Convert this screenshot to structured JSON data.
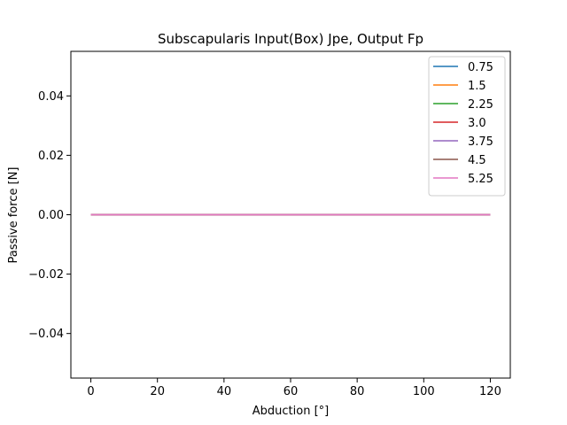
{
  "chart_data": {
    "type": "line",
    "title": "Subscapularis Input(Box) Jpe, Output Fp",
    "xlabel": "Abduction [°]",
    "ylabel": "Passive force [N]",
    "xlim": [
      -6,
      126
    ],
    "ylim": [
      -0.055,
      0.055
    ],
    "x_ticks": [
      0,
      20,
      40,
      60,
      80,
      100,
      120
    ],
    "x_tick_labels": [
      "0",
      "20",
      "40",
      "60",
      "80",
      "100",
      "120"
    ],
    "y_ticks": [
      -0.04,
      -0.02,
      0.0,
      0.02,
      0.04
    ],
    "y_tick_labels": [
      "−0.04",
      "−0.02",
      "0.00",
      "0.02",
      "0.04"
    ],
    "grid": false,
    "legend_position": "top-right",
    "x": [
      0,
      120
    ],
    "series": [
      {
        "name": "0.75",
        "color": "#1f77b4",
        "values": [
          0,
          0
        ]
      },
      {
        "name": "1.5",
        "color": "#ff7f0e",
        "values": [
          0,
          0
        ]
      },
      {
        "name": "2.25",
        "color": "#2ca02c",
        "values": [
          0,
          0
        ]
      },
      {
        "name": "3.0",
        "color": "#d62728",
        "values": [
          0,
          0
        ]
      },
      {
        "name": "3.75",
        "color": "#9467bd",
        "values": [
          0,
          0
        ]
      },
      {
        "name": "4.5",
        "color": "#8c564b",
        "values": [
          0,
          0
        ]
      },
      {
        "name": "5.25",
        "color": "#e377c2",
        "values": [
          0,
          0
        ]
      }
    ]
  }
}
